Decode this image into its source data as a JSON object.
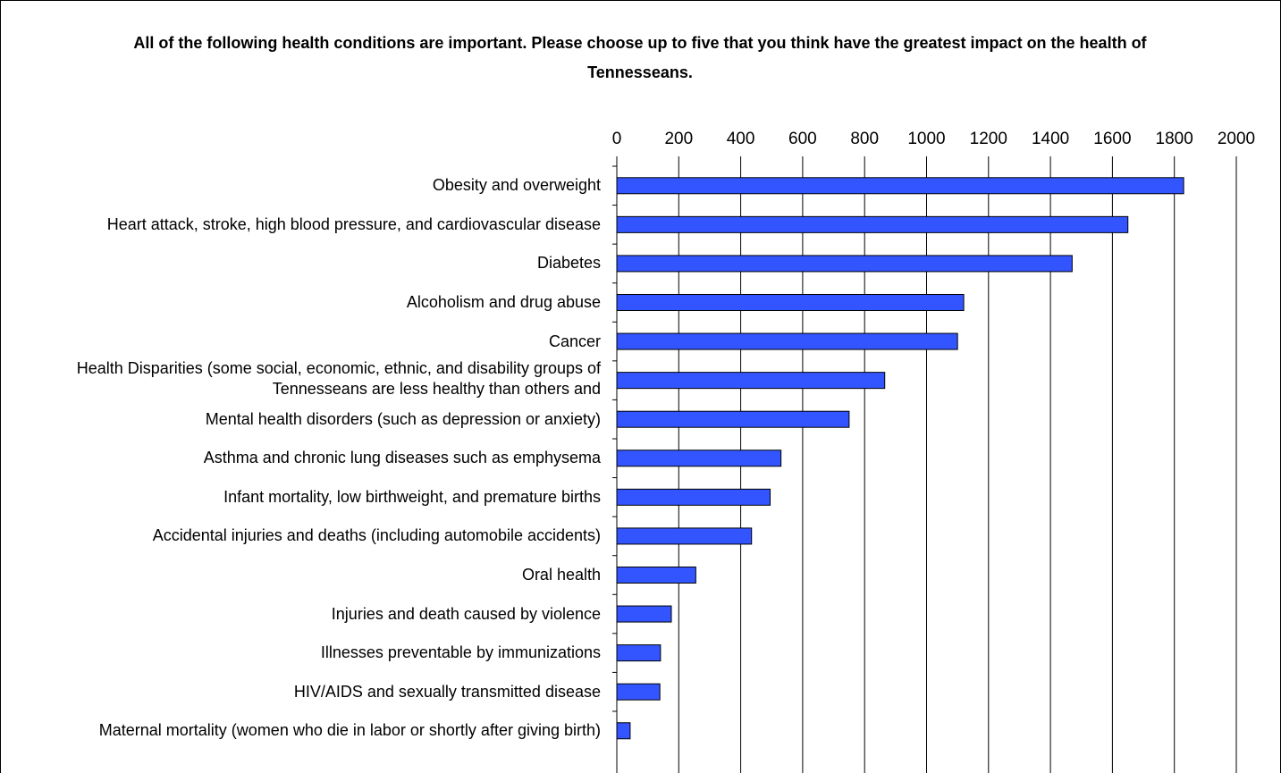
{
  "chart_data": {
    "type": "bar",
    "orientation": "horizontal",
    "title": "All of the following health conditions are important. Please choose up to five that you think have the greatest impact on the health of Tennesseans.",
    "categories": [
      "Obesity and overweight",
      "Heart attack, stroke, high blood pressure, and cardiovascular disease",
      "Diabetes",
      "Alcoholism and drug abuse",
      "Cancer",
      "Health Disparities (some social, economic, ethnic, and disability groups of Tennesseans are less healthy than others and",
      "Mental health disorders (such as depression or anxiety)",
      "Asthma and chronic lung diseases such as emphysema",
      "Infant mortality, low birthweight, and premature births",
      "Accidental injuries and deaths (including automobile accidents)",
      "Oral health",
      "Injuries and death caused by violence",
      "Illnesses preventable by immunizations",
      "HIV/AIDS and sexually transmitted disease",
      "Maternal mortality (women who die in labor or shortly after giving birth)"
    ],
    "values": [
      1830,
      1650,
      1470,
      1120,
      1100,
      865,
      750,
      530,
      495,
      435,
      255,
      176,
      141,
      139,
      43
    ],
    "color": "#3355ff",
    "xlim": [
      0,
      2000
    ],
    "xticks": [
      0,
      200,
      400,
      600,
      800,
      1000,
      1200,
      1400,
      1600,
      1800,
      2000
    ],
    "grid": true
  }
}
